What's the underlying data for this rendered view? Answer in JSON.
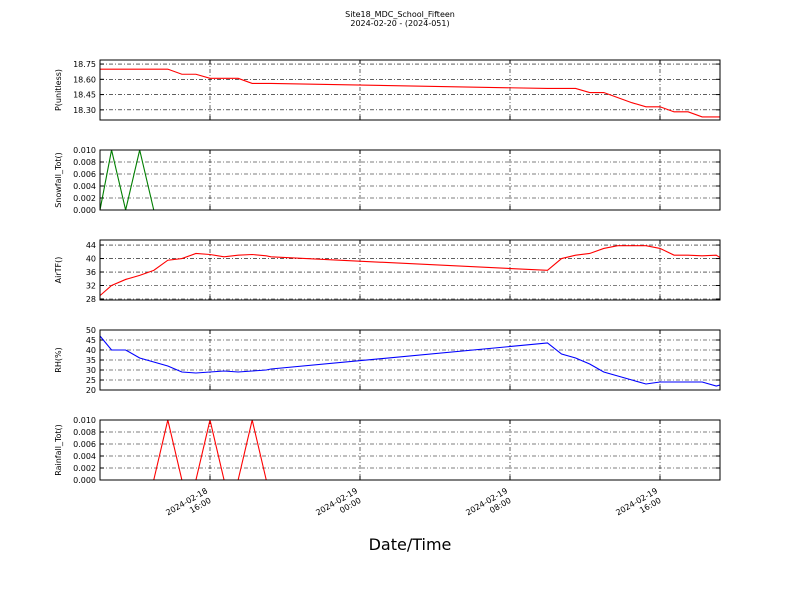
{
  "figure": {
    "title": "Site18_MDC_School_Fifteen",
    "subtitle": "2024-02-20 - (2024-051)",
    "x_label": "Date/Time",
    "xlim": [
      "2024-02-18 10:08",
      "2024-02-19 19:12"
    ],
    "xticks": [
      "2024-02-18 16:00",
      "2024-02-19 00:00",
      "2024-02-19 08:00",
      "2024-02-19 16:00"
    ],
    "x": [
      "2024-02-18 10:08",
      "2024-02-18 10:45",
      "2024-02-18 11:30",
      "2024-02-18 12:15",
      "2024-02-18 13:00",
      "2024-02-18 13:45",
      "2024-02-18 14:30",
      "2024-02-18 15:15",
      "2024-02-18 16:00",
      "2024-02-18 16:45",
      "2024-02-18 17:30",
      "2024-02-18 18:15",
      "2024-02-18 19:00",
      "2024-02-18 19:15",
      "2024-02-19 10:00",
      "2024-02-19 10:45",
      "2024-02-19 11:30",
      "2024-02-19 12:15",
      "2024-02-19 13:00",
      "2024-02-19 13:45",
      "2024-02-19 14:30",
      "2024-02-19 15:15",
      "2024-02-19 16:00",
      "2024-02-19 16:45",
      "2024-02-19 17:30",
      "2024-02-19 18:15",
      "2024-02-19 19:00",
      "2024-02-19 19:12"
    ]
  },
  "chart_data": [
    {
      "type": "line",
      "y_label": "P(unitless)",
      "ylim": [
        18.2,
        18.79
      ],
      "grid": true,
      "yticks": [
        {
          "value": 18.3,
          "label": "18.30"
        },
        18.45,
        {
          "value": 18.6,
          "label": "18.60"
        },
        18.75
      ],
      "series": [
        {
          "color": "#ff0000",
          "values": [
            18.7,
            18.7,
            18.7,
            18.7,
            18.7,
            18.7,
            18.65,
            18.65,
            18.61,
            18.61,
            18.61,
            18.56,
            18.56,
            18.56,
            18.51,
            18.51,
            18.51,
            18.47,
            18.47,
            18.42,
            18.37,
            18.33,
            18.33,
            18.28,
            18.28,
            18.23,
            18.23,
            18.23
          ]
        }
      ]
    },
    {
      "type": "line",
      "y_label": "Snowfall_Tot()",
      "ylim": [
        0,
        0.01
      ],
      "grid": true,
      "yticks": [
        {
          "value": 0,
          "label": "0.000"
        },
        0.002,
        0.004,
        0.006,
        0.008,
        {
          "value": 0.01,
          "label": "0.010"
        }
      ],
      "series": [
        {
          "color": "#007f00",
          "values": [
            0,
            0.01,
            0,
            0.01,
            0,
            0,
            0,
            0,
            0,
            0,
            0,
            0,
            0,
            0,
            0,
            0,
            0,
            0,
            0,
            0,
            0,
            0,
            0,
            0,
            0,
            0,
            0,
            0
          ]
        }
      ]
    },
    {
      "type": "line",
      "y_label": "AirTF()",
      "ylim": [
        27.7,
        45.5
      ],
      "grid": true,
      "yticks": [
        28,
        32,
        36,
        40,
        44
      ],
      "series": [
        {
          "color": "#ff0000",
          "values": [
            29,
            32,
            33.8,
            35,
            36.5,
            39.5,
            40,
            41.5,
            41.2,
            40.5,
            41,
            41.2,
            40.8,
            40.5,
            36.5,
            40,
            41,
            41.5,
            43,
            43.8,
            43.8,
            43.8,
            43,
            41,
            41,
            40.8,
            41,
            40.3
          ]
        }
      ]
    },
    {
      "type": "line",
      "y_label": "RH(%)",
      "ylim": [
        20,
        50
      ],
      "grid": true,
      "yticks": [
        20,
        25,
        30,
        35,
        40,
        45,
        50
      ],
      "series": [
        {
          "color": "#0000ff",
          "values": [
            47,
            40,
            40,
            36,
            34,
            32,
            29,
            28.5,
            29,
            29.5,
            29,
            29.5,
            30,
            30.5,
            43.5,
            38,
            36,
            33,
            29,
            27,
            25,
            23,
            24,
            24,
            24,
            24,
            22,
            22.5
          ]
        }
      ]
    },
    {
      "type": "line",
      "y_label": "Rainfall_Tot()",
      "ylim": [
        0,
        0.01
      ],
      "grid": true,
      "yticks": [
        {
          "value": 0,
          "label": "0.000"
        },
        0.002,
        0.004,
        0.006,
        0.008,
        {
          "value": 0.01,
          "label": "0.010"
        }
      ],
      "series": [
        {
          "color": "#ff0000",
          "values": [
            0,
            0,
            0,
            0,
            0,
            0.01,
            0,
            0,
            0.01,
            0,
            0,
            0.01,
            0,
            0,
            0,
            0,
            0,
            0,
            0,
            0,
            0,
            0,
            0,
            0,
            0,
            0,
            0,
            0
          ]
        }
      ]
    }
  ]
}
